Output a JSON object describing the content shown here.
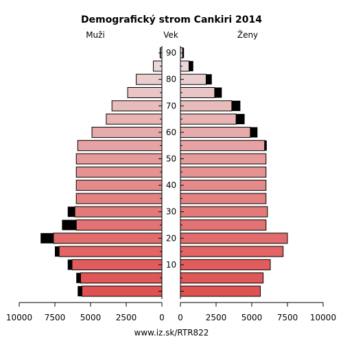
{
  "chart_data": {
    "type": "bar",
    "title": "Demografický strom Cankiri 2014",
    "left_label": "Muži",
    "center_label": "Vek",
    "right_label": "Ženy",
    "source": "www.iz.sk/RTR822",
    "age_ticks": [
      "10",
      "20",
      "30",
      "40",
      "50",
      "60",
      "70",
      "80",
      "90"
    ],
    "x_ticks_left": [
      "10000",
      "7500",
      "5000",
      "2500",
      "0"
    ],
    "x_ticks_right": [
      "0",
      "2500",
      "5000",
      "7500",
      "10000"
    ],
    "xlim": [
      0,
      10000
    ],
    "age_groups": [
      "0-4",
      "5-9",
      "10-14",
      "15-19",
      "20-24",
      "25-29",
      "30-34",
      "35-39",
      "40-44",
      "45-49",
      "50-54",
      "55-59",
      "60-64",
      "65-69",
      "70-74",
      "75-79",
      "80-84",
      "85-89",
      "90+"
    ],
    "series": [
      {
        "name": "Muži",
        "base": [
          5600,
          5700,
          6300,
          7200,
          7600,
          6000,
          6100,
          6000,
          6000,
          6000,
          6000,
          5900,
          4900,
          3900,
          3500,
          2400,
          1800,
          600,
          100
        ],
        "excess": [
          300,
          300,
          300,
          300,
          900,
          1000,
          500,
          0,
          0,
          0,
          0,
          0,
          0,
          0,
          0,
          0,
          0,
          0,
          50
        ]
      },
      {
        "name": "Ženy",
        "base": [
          5600,
          5800,
          6300,
          7200,
          7500,
          6000,
          6100,
          6000,
          6000,
          6000,
          6000,
          5900,
          4900,
          3900,
          3600,
          2400,
          1800,
          600,
          150
        ],
        "excess": [
          0,
          0,
          0,
          0,
          0,
          0,
          0,
          0,
          0,
          0,
          0,
          150,
          500,
          600,
          600,
          500,
          400,
          300,
          100
        ]
      }
    ],
    "colors": {
      "young": "#e05252",
      "old": "#ece0e0",
      "excess": "#000000",
      "stroke": "#000000"
    }
  }
}
